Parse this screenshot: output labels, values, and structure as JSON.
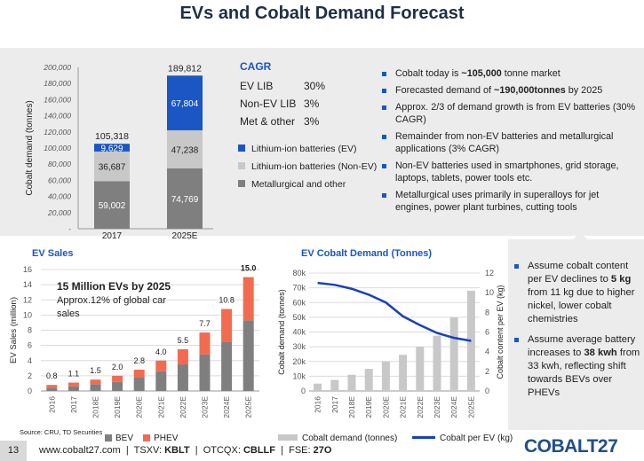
{
  "title": "EVs and Cobalt Demand Forecast",
  "cagr": {
    "title": "CAGR",
    "rows": [
      {
        "label": "EV LIB",
        "value": "30%"
      },
      {
        "label": "Non-EV LIB",
        "value": "3%"
      },
      {
        "label": "Met & other",
        "value": "3%"
      }
    ]
  },
  "legend_top": [
    {
      "label": "Lithium-ion batteries (EV)",
      "color": "#1a56c4"
    },
    {
      "label": "Lithium-ion batteries (Non-EV)",
      "color": "#c8c8c8"
    },
    {
      "label": "Metallurgical and other",
      "color": "#7f7f7f"
    }
  ],
  "bullets_top": [
    {
      "pre": "Cobalt today is ",
      "bold": "~105,000",
      "post": " tonne market"
    },
    {
      "pre": "Forecasted demand of ",
      "bold": "~190,000tonnes",
      "post": " by 2025"
    },
    {
      "pre": "Approx. 2/3 of demand growth is from EV  batteries (30% CAGR)",
      "bold": "",
      "post": ""
    },
    {
      "pre": "Remainder from non-EV batteries and metallurgical applications (3% CAGR)",
      "bold": "",
      "post": ""
    },
    {
      "pre": "Non-EV batteries used in smartphones, grid storage,  laptops, tablets, power tools etc.",
      "bold": "",
      "post": ""
    },
    {
      "pre": "Metallurgical uses primarily in superalloys for jet engines, power plant turbines, cutting tools",
      "bold": "",
      "post": ""
    }
  ],
  "bullets_right": [
    {
      "pre": "Assume cobalt content per EV declines to ",
      "bold": "5 kg",
      "post": " from 11 kg due to higher nickel, lower cobalt chemistries"
    },
    {
      "pre": "Assume average battery increases to ",
      "bold": "38 kwh",
      "post": " from 33 kwh, reflecting shift towards BEVs over PHEVs"
    }
  ],
  "ev_sales": {
    "section_title": "EV Sales",
    "annotation_bold": "15 Million EVs by 2025",
    "annotation_text": "Approx.12% of global car sales"
  },
  "cobalt_demand": {
    "section_title": "EV Cobalt Demand (Tonnes)"
  },
  "source": "Source: CRU, TD Securities",
  "footer": {
    "page": "13",
    "url": "www.cobalt27.com",
    "sep": "|",
    "tsxv_label": "TSXV:",
    "tsxv": "KBLT",
    "otcqx_label": "OTCQX:",
    "otcqx": "CBLLF",
    "fse_label": "FSE:",
    "fse": "27O",
    "logo": "COBALT27"
  },
  "chart_data": [
    {
      "type": "bar",
      "stacked": true,
      "categories": [
        "2017",
        "2025E"
      ],
      "ylabel": "Cobalt demand (tonnes)",
      "ylim": [
        0,
        200000
      ],
      "yticks": [
        "-",
        "20,000",
        "40,000",
        "60,000",
        "80,000",
        "100,000",
        "120,000",
        "140,000",
        "160,000",
        "180,000",
        "200,000"
      ],
      "series": [
        {
          "name": "Metallurgical and other",
          "values": [
            59002,
            74769
          ],
          "labels": [
            "59,002",
            "74,769"
          ],
          "color": "#7f7f7f"
        },
        {
          "name": "Lithium-ion batteries (Non-EV)",
          "values": [
            36687,
            47238
          ],
          "labels": [
            "36,687",
            "47,238"
          ],
          "color": "#c8c8c8"
        },
        {
          "name": "Lithium-ion batteries (EV)",
          "values": [
            9629,
            67804
          ],
          "labels": [
            "9,629",
            "67,804"
          ],
          "color": "#1a56c4"
        }
      ],
      "totals": [
        "105,318",
        "189,812"
      ],
      "grid": false
    },
    {
      "type": "bar",
      "stacked": true,
      "title": "EV Sales",
      "categories": [
        "2016",
        "2017",
        "2018E",
        "2019E",
        "2020E",
        "2021E",
        "2022E",
        "2023E",
        "2024E",
        "2025E"
      ],
      "ylabel": "EV Sales (million)",
      "ylim": [
        0,
        16
      ],
      "yticks": [
        "0",
        "2",
        "4",
        "6",
        "8",
        "10",
        "12",
        "14",
        "16"
      ],
      "series": [
        {
          "name": "BEV",
          "values": [
            0.4,
            0.6,
            0.9,
            1.2,
            1.8,
            2.6,
            3.5,
            4.8,
            6.5,
            9.3
          ],
          "color": "#7f7f7f"
        },
        {
          "name": "PHEV",
          "values": [
            0.4,
            0.5,
            0.6,
            0.8,
            1.0,
            1.4,
            2.0,
            2.9,
            4.3,
            5.7
          ],
          "color": "#f26b4f"
        }
      ],
      "totals": [
        "0.8",
        "1.1",
        "1.5",
        "2.0",
        "2.8",
        "4.0",
        "5.5",
        "7.7",
        "10.8",
        "15.0"
      ],
      "legend": "bottom",
      "grid": true
    },
    {
      "type": "bar",
      "title": "EV Cobalt Demand (Tonnes)",
      "categories": [
        "2016",
        "2017",
        "2018E",
        "2019E",
        "2020E",
        "2021E",
        "2022E",
        "2023E",
        "2024E",
        "2025E"
      ],
      "ylabel": "Cobalt demand (tonnes)",
      "y2label": "Cobalt content per EV (kg)",
      "ylim": [
        0,
        80000
      ],
      "yticks": [
        "0",
        "10k",
        "20k",
        "30k",
        "40k",
        "50k",
        "60k",
        "70k",
        "80k"
      ],
      "y2lim": [
        0,
        12
      ],
      "y2ticks": [
        "0",
        "2",
        "4",
        "6",
        "8",
        "10",
        "12"
      ],
      "series": [
        {
          "name": "Cobalt demand (tonnes)",
          "type": "bar",
          "values": [
            5000,
            7500,
            11000,
            15000,
            20000,
            24500,
            30000,
            37500,
            50000,
            68000
          ],
          "color": "#c8c8c8"
        },
        {
          "name": "Cobalt per EV (kg)",
          "type": "line",
          "axis": "y2",
          "values": [
            11.0,
            10.8,
            10.4,
            9.8,
            9.0,
            7.6,
            6.7,
            5.9,
            5.4,
            5.1
          ],
          "color": "#1a3fbf"
        }
      ],
      "legend": "bottom",
      "grid": true
    }
  ]
}
